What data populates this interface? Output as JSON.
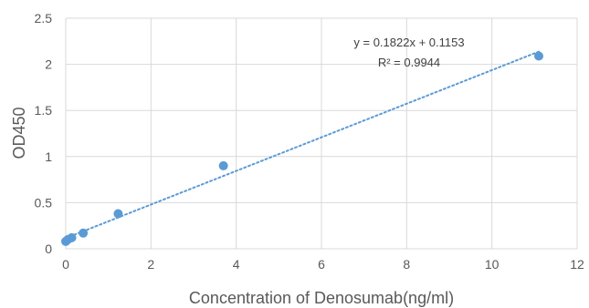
{
  "chart_data": {
    "type": "scatter",
    "xlabel": "Concentration of Denosumab(ng/ml)",
    "ylabel": "OD450",
    "xlim": [
      0,
      12
    ],
    "ylim": [
      0,
      2.5
    ],
    "x_ticks": [
      0,
      2,
      4,
      6,
      8,
      10,
      12
    ],
    "y_ticks": [
      0,
      0.5,
      1,
      1.5,
      2,
      2.5
    ],
    "x_tick_labels": [
      "0",
      "2",
      "4",
      "6",
      "8",
      "10",
      "12"
    ],
    "y_tick_labels": [
      "0",
      "0.5",
      "1",
      "1.5",
      "2",
      "2.5"
    ],
    "grid": true,
    "legend": "none",
    "series": [
      {
        "x": [
          0.0,
          0.05,
          0.14,
          0.41,
          1.23,
          3.7,
          11.1
        ],
        "y": [
          0.08,
          0.1,
          0.12,
          0.17,
          0.38,
          0.9,
          2.09
        ],
        "color": "#5b9bd5"
      }
    ],
    "trendline": {
      "type": "linear",
      "style": "dotted",
      "color": "#5b9bd5",
      "slope": 0.1822,
      "intercept": 0.1153,
      "x_range": [
        0.0,
        11.1
      ]
    },
    "annotations": {
      "equation": "y = 0.1822x + 0.1153",
      "r_squared": "R² = 0.9944"
    },
    "colors": {
      "gridline": "#d9d9d9",
      "tick_text": "#595959",
      "annotation_text": "#404040"
    }
  }
}
